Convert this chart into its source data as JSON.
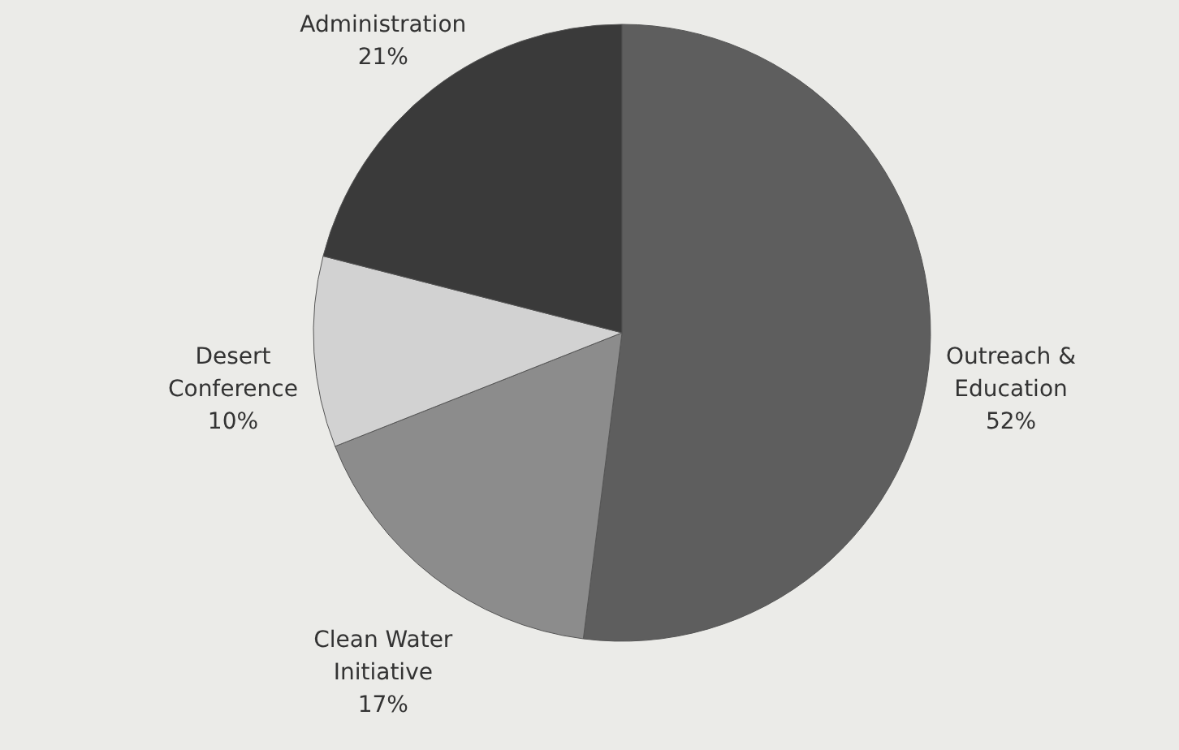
{
  "chart_data": {
    "type": "pie",
    "categories": [
      "Outreach & Education",
      "Clean Water Initiative",
      "Desert Conference",
      "Administration"
    ],
    "values": [
      52,
      17,
      10,
      21
    ],
    "colors": [
      "#5e5e5e",
      "#8c8c8c",
      "#d2d2d2",
      "#3a3a3a"
    ],
    "value_labels": [
      "52%",
      "17%",
      "10%",
      "21%"
    ]
  }
}
